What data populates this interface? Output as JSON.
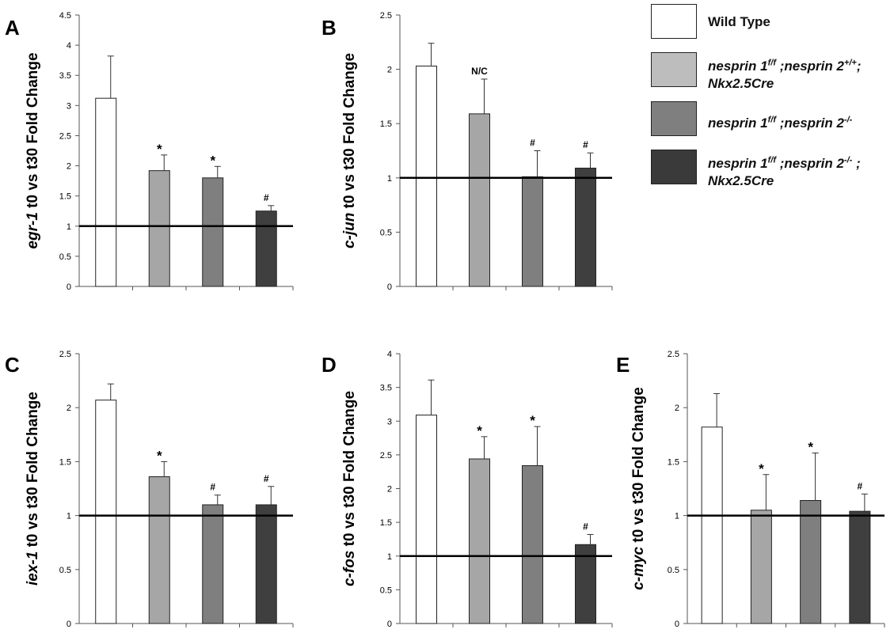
{
  "chart_data": [
    {
      "panel": "A",
      "type": "bar",
      "ylabel_gene": "egr-1",
      "ylabel_rest": " t0 vs t30  Fold Change",
      "ylim": [
        0,
        4.5
      ],
      "yticks": [
        "0",
        "0.5",
        "1",
        "1.5",
        "2",
        "2.5",
        "3",
        "3.5",
        "4",
        "4.5"
      ],
      "values": [
        3.12,
        1.92,
        1.8,
        1.25
      ],
      "errors": [
        0.7,
        0.26,
        0.19,
        0.09
      ],
      "annotations": [
        "",
        "*",
        "*",
        "#"
      ],
      "reference_line": 1
    },
    {
      "panel": "B",
      "type": "bar",
      "ylabel_gene": "c-jun",
      "ylabel_rest": " t0 vs t30  Fold Change",
      "ylim": [
        0,
        2.5
      ],
      "yticks": [
        "0",
        "0.5",
        "1",
        "1.5",
        "2",
        "2.5"
      ],
      "values": [
        2.03,
        1.59,
        1.01,
        1.09
      ],
      "errors": [
        0.21,
        0.32,
        0.24,
        0.14
      ],
      "annotations": [
        "",
        "N/C",
        "#",
        "#"
      ],
      "reference_line": 1
    },
    {
      "panel": "C",
      "type": "bar",
      "ylabel_gene": "iex-1",
      "ylabel_rest": " t0 vs t30  Fold Change",
      "ylim": [
        0,
        2.5
      ],
      "yticks": [
        "0",
        "0.5",
        "1",
        "1.5",
        "2",
        "2.5"
      ],
      "values": [
        2.07,
        1.36,
        1.1,
        1.1
      ],
      "errors": [
        0.15,
        0.14,
        0.09,
        0.17
      ],
      "annotations": [
        "",
        "*",
        "#",
        "#"
      ],
      "reference_line": 1
    },
    {
      "panel": "D",
      "type": "bar",
      "ylabel_gene": "c-fos",
      "ylabel_rest": " t0 vs t30  Fold Change",
      "ylim": [
        0,
        4
      ],
      "yticks": [
        "0",
        "0.5",
        "1",
        "1.5",
        "2",
        "2.5",
        "3",
        "3.5",
        "4"
      ],
      "values": [
        3.09,
        2.44,
        2.34,
        1.17
      ],
      "errors": [
        0.52,
        0.33,
        0.58,
        0.15
      ],
      "annotations": [
        "",
        "*",
        "*",
        "#"
      ],
      "reference_line": 1
    },
    {
      "panel": "E",
      "type": "bar",
      "ylabel_gene": "c-myc",
      "ylabel_rest": " t0 vs t30  Fold Change",
      "ylim": [
        0,
        2.5
      ],
      "yticks": [
        "0",
        "0.5",
        "1",
        "1.5",
        "2",
        "2.5"
      ],
      "values": [
        1.82,
        1.05,
        1.14,
        1.04
      ],
      "errors": [
        0.31,
        0.33,
        0.44,
        0.16
      ],
      "annotations": [
        "",
        "*",
        "*",
        "#"
      ],
      "reference_line": 1
    }
  ],
  "legend": [
    {
      "color": "#ffffff",
      "text1": "Wild Type",
      "text2": ""
    },
    {
      "color": "#bdbdbd",
      "text1": "nesprin 1<sup>f/f</sup> ;nesprin 2<sup>+/+</sup>;",
      "text2": "Nkx2.5Cre"
    },
    {
      "color": "#7f7f7f",
      "text1": "nesprin 1<sup>f/f</sup> ;nesprin 2<sup>-/-</sup>",
      "text2": ""
    },
    {
      "color": "#3a3a3a",
      "text1": "nesprin 1<sup>f/f</sup> ;nesprin 2<sup>-/-</sup> ;",
      "text2": "Nkx2.5Cre"
    }
  ],
  "bar_colors": [
    "#ffffff",
    "#a6a6a6",
    "#7f7f7f",
    "#3f3f3f"
  ]
}
